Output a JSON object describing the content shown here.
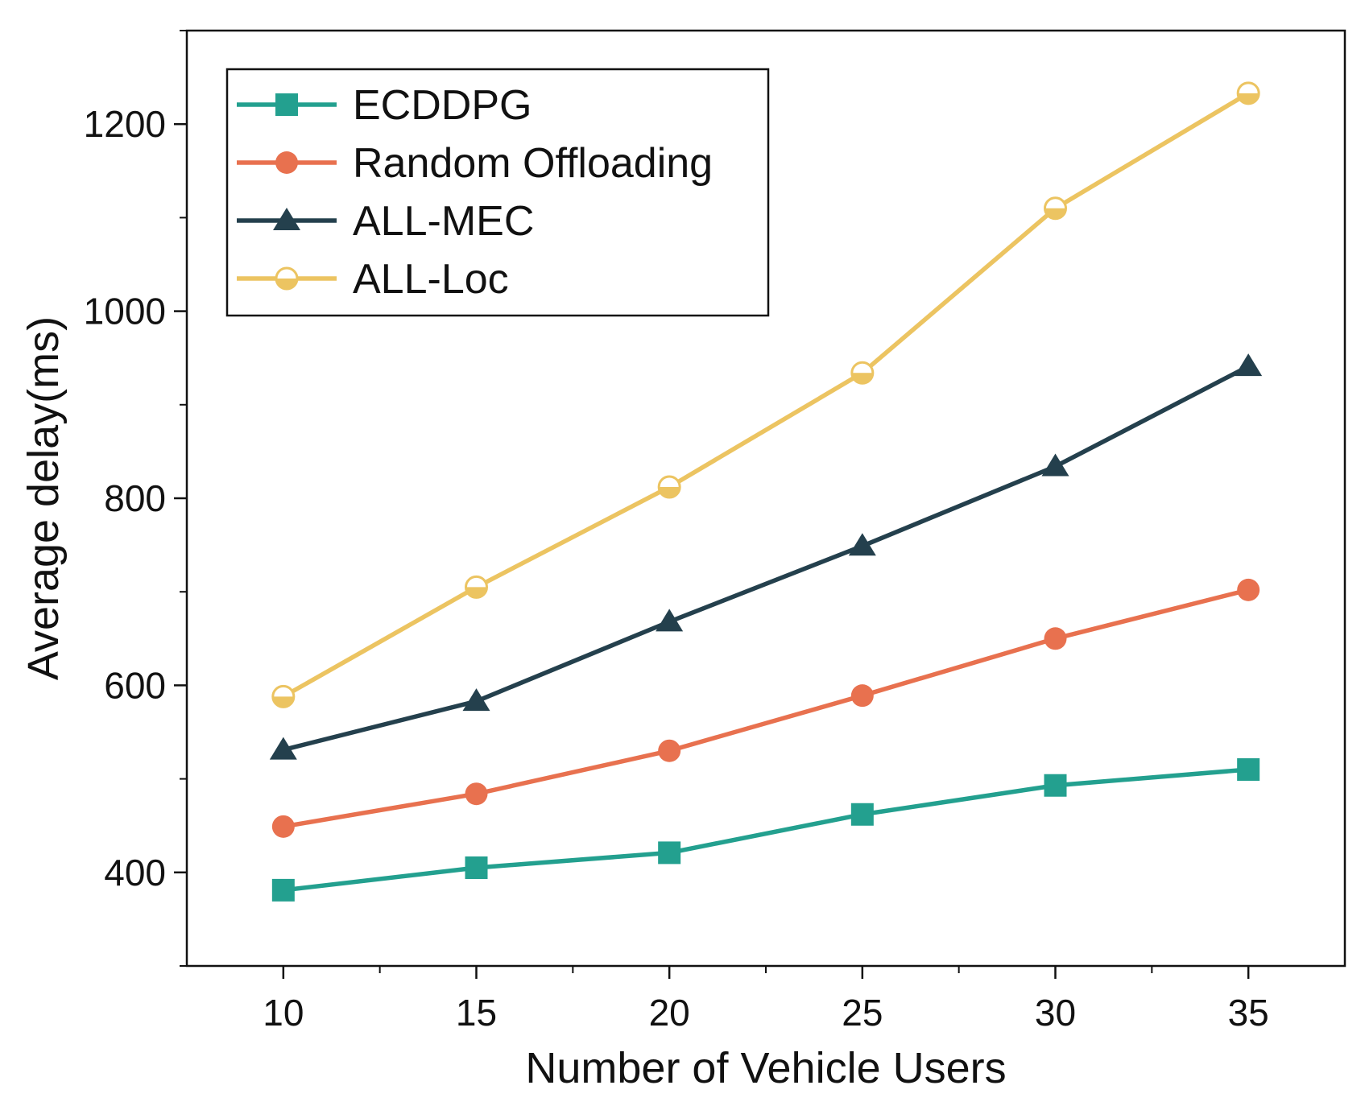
{
  "chart_data": {
    "type": "line",
    "title": "",
    "xlabel": "Number of Vehicle Users",
    "ylabel": "Average delay(ms)",
    "x": [
      10,
      15,
      20,
      25,
      30,
      35
    ],
    "xlim": [
      7.5,
      37.5
    ],
    "ylim": [
      300,
      1300
    ],
    "xticks": [
      "10",
      "15",
      "20",
      "25",
      "30",
      "35"
    ],
    "yticks": [
      "400",
      "600",
      "800",
      "1000",
      "1200"
    ],
    "legend_position": "top-left",
    "series": [
      {
        "name": "ECDDPG",
        "marker": "square",
        "color": "#23a08f",
        "values": [
          381,
          405,
          421,
          462,
          493,
          510
        ]
      },
      {
        "name": "Random Offloading",
        "marker": "circle",
        "color": "#e8714f",
        "values": [
          449,
          484,
          530,
          589,
          650,
          702
        ]
      },
      {
        "name": "ALL-MEC",
        "marker": "triangle",
        "color": "#24404d",
        "values": [
          531,
          583,
          668,
          749,
          834,
          941
        ]
      },
      {
        "name": "ALL-Loc",
        "marker": "half-circle",
        "color": "#ecc461",
        "values": [
          588,
          705,
          812,
          934,
          1110,
          1233
        ]
      }
    ]
  }
}
